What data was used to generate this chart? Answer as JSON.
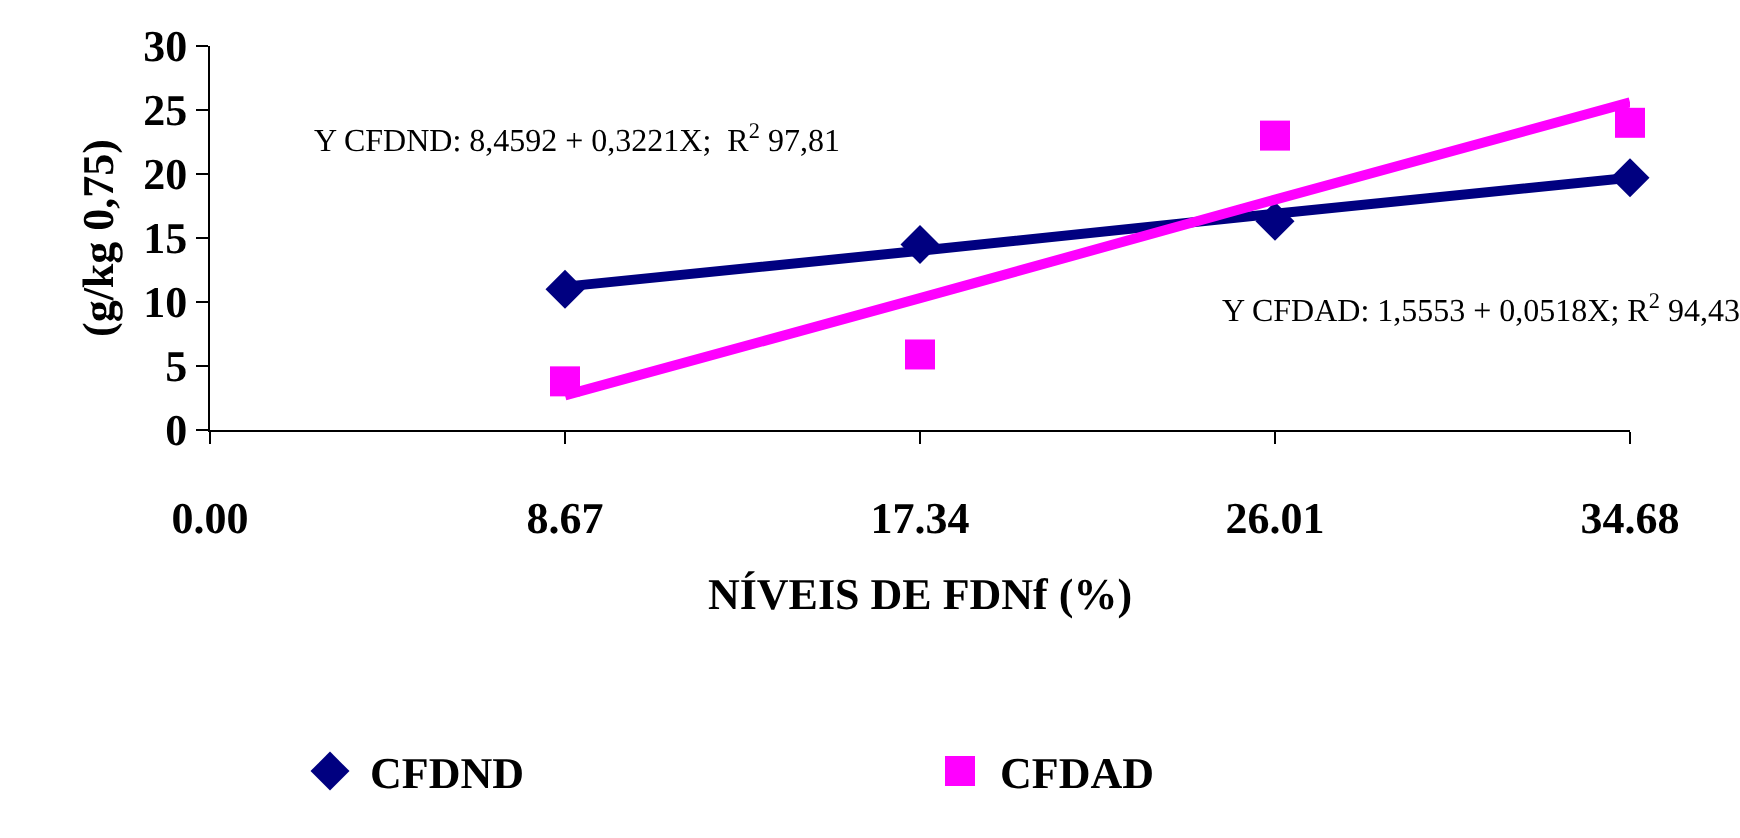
{
  "chart_data": {
    "type": "scatter",
    "xlabel": "NÍVEIS DE FDNf (%)",
    "ylabel": "(g/kg 0,75)",
    "x": [
      8.67,
      17.34,
      26.01,
      34.68
    ],
    "series": [
      {
        "name": "CFDND",
        "color": "#000080",
        "marker": "diamond",
        "values": [
          11.0,
          14.5,
          16.3,
          19.7
        ]
      },
      {
        "name": "CFDAD",
        "color": "#ff00ff",
        "marker": "square",
        "values": [
          3.8,
          5.9,
          23.0,
          24.0
        ]
      },
      {
        "type": "line",
        "color": "#000080",
        "marker": "none",
        "line_style": "solid",
        "values": [
          11.2,
          14.0,
          16.9,
          19.7
        ]
      },
      {
        "type": "line",
        "color": "#ff00ff",
        "marker": "none",
        "line_style": "solid",
        "values": [
          2.7,
          10.3,
          18.0,
          25.6
        ]
      }
    ],
    "xlim": [
      0,
      34.68
    ],
    "xticks": [
      {
        "value": 0,
        "label": "0.00"
      },
      {
        "value": 8.67,
        "label": "8.67"
      },
      {
        "value": 17.34,
        "label": "17.34"
      },
      {
        "value": 26.01,
        "label": "26.01"
      },
      {
        "value": 34.68,
        "label": "34.68"
      }
    ],
    "ylim": [
      0,
      30
    ],
    "yticks": [
      0,
      5,
      10,
      15,
      20,
      25,
      30
    ],
    "grid": false,
    "legend": "bottom",
    "annotations": [
      "Y CFDND: 8,4592 + 0,3221X;  R$^{2}$ 97,81",
      "Y CFDAD: 1,5553 + 0,0518X; R$^{2}$ 94,43"
    ]
  }
}
